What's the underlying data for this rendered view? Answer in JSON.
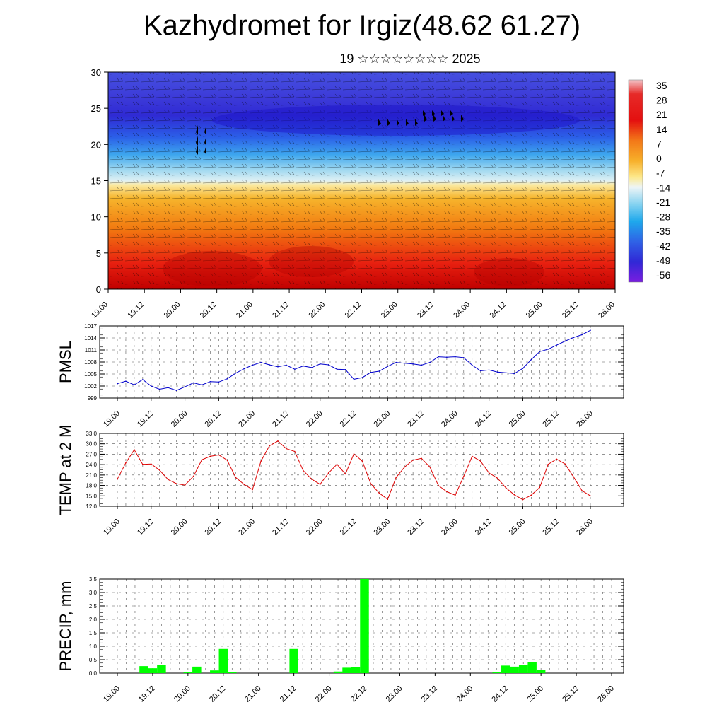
{
  "title": "Kazhydromet for Irgiz(48.62 61.27)",
  "subtitle": "19 ☆☆☆☆☆☆☆☆ 2025",
  "colors": {
    "pmsl_line": "#0000cc",
    "temp_line": "#dd0000",
    "precip_bar": "#00ff00",
    "grid": "#555555"
  },
  "x_tick_labels": [
    "19.00",
    "19.12",
    "20.00",
    "20.12",
    "21.00",
    "21.12",
    "22.00",
    "22.12",
    "23.00",
    "23.12",
    "24.00",
    "24.12",
    "25.00",
    "25.12",
    "26.00"
  ],
  "chart_data": [
    {
      "type": "heatmap",
      "name": "height-time temperature cross-section with wind barbs",
      "y_ticks": [
        0,
        5,
        10,
        15,
        20,
        25,
        30
      ],
      "ylim": [
        0,
        30
      ],
      "colorbar": {
        "labels": [
          "35",
          "28",
          "21",
          "14",
          "7",
          "0",
          "-7",
          "-14",
          "-21",
          "-28",
          "-35",
          "-42",
          "-49",
          "-56"
        ],
        "range": [
          -60,
          38
        ]
      }
    },
    {
      "type": "line",
      "ylabel": "PMSL",
      "ylim": [
        999,
        1017
      ],
      "y_ticks": [
        "1017",
        "1014",
        "1011",
        "1008",
        "1005",
        "1002",
        "999"
      ],
      "x": [
        0,
        3,
        6,
        9,
        12,
        15,
        18,
        21,
        24,
        27,
        30,
        33,
        36,
        39,
        42,
        45,
        48,
        51,
        54,
        57,
        60,
        63,
        66,
        69,
        72,
        75,
        78,
        81,
        84,
        87,
        90,
        93,
        96,
        99,
        102,
        105,
        108,
        111,
        114,
        117,
        120,
        123,
        126,
        129,
        132,
        135,
        138,
        141,
        144,
        147,
        150,
        153,
        156,
        159,
        162,
        165,
        168
      ],
      "values": [
        1002.6,
        1003.2,
        1002.3,
        1003.6,
        1002.0,
        1001.2,
        1001.6,
        1000.9,
        1001.8,
        1002.8,
        1002.3,
        1003.1,
        1003.0,
        1003.8,
        1005.2,
        1006.3,
        1007.2,
        1007.9,
        1007.3,
        1006.8,
        1007.2,
        1006.2,
        1007.0,
        1006.6,
        1007.5,
        1007.3,
        1006.2,
        1006.1,
        1003.7,
        1004.1,
        1005.4,
        1005.7,
        1006.9,
        1007.9,
        1007.7,
        1007.5,
        1007.2,
        1007.9,
        1009.3,
        1009.2,
        1009.3,
        1009.1,
        1007.2,
        1005.8,
        1006.0,
        1005.5,
        1005.3,
        1005.1,
        1006.4,
        1008.6,
        1010.6,
        1011.2,
        1012.2,
        1013.2,
        1014.1,
        1014.8,
        1015.9
      ]
    },
    {
      "type": "line",
      "ylabel": "TEMP at 2 M",
      "ylim": [
        12,
        33
      ],
      "y_ticks": [
        "33.0",
        "30.0",
        "27.0",
        "24.0",
        "21.0",
        "18.0",
        "15.0",
        "12.0"
      ],
      "x": [
        0,
        3,
        6,
        9,
        12,
        15,
        18,
        21,
        24,
        27,
        30,
        33,
        36,
        39,
        42,
        45,
        48,
        51,
        54,
        57,
        60,
        63,
        66,
        69,
        72,
        75,
        78,
        81,
        84,
        87,
        90,
        93,
        96,
        99,
        102,
        105,
        108,
        111,
        114,
        117,
        120,
        123,
        126,
        129,
        132,
        135,
        138,
        141,
        144,
        147,
        150,
        153,
        156,
        159,
        162,
        165,
        168
      ],
      "values": [
        19.8,
        24.5,
        28.3,
        24.1,
        24.2,
        22.4,
        19.7,
        18.5,
        18.1,
        20.6,
        25.4,
        26.4,
        26.8,
        25.3,
        20.3,
        18.3,
        16.8,
        25.0,
        29.4,
        30.8,
        28.6,
        27.8,
        22.3,
        19.8,
        18.3,
        21.6,
        24.1,
        21.3,
        27.1,
        25.0,
        18.5,
        15.8,
        14.0,
        20.3,
        23.3,
        25.3,
        25.8,
        23.3,
        18.0,
        16.2,
        15.2,
        20.6,
        26.4,
        25.0,
        21.6,
        20.1,
        17.3,
        15.3,
        13.9,
        15.2,
        17.4,
        24.1,
        25.6,
        24.2,
        20.5,
        16.5,
        15.0
      ]
    },
    {
      "type": "bar",
      "ylabel": "PRECIP, mm",
      "ylim": [
        0,
        3.5
      ],
      "y_ticks": [
        "3.5",
        "3.0",
        "2.5",
        "2.0",
        "1.5",
        "1.0",
        "0.5",
        "0.0"
      ],
      "x": [
        9,
        12,
        15,
        24,
        27,
        33,
        36,
        39,
        60,
        75,
        78,
        81,
        84,
        129,
        132,
        135,
        138,
        141,
        144
      ],
      "values": [
        0.26,
        0.18,
        0.3,
        0.04,
        0.24,
        0.1,
        0.9,
        0.05,
        0.9,
        0.06,
        0.2,
        0.22,
        3.5,
        0.05,
        0.28,
        0.24,
        0.3,
        0.42,
        0.12
      ]
    }
  ]
}
